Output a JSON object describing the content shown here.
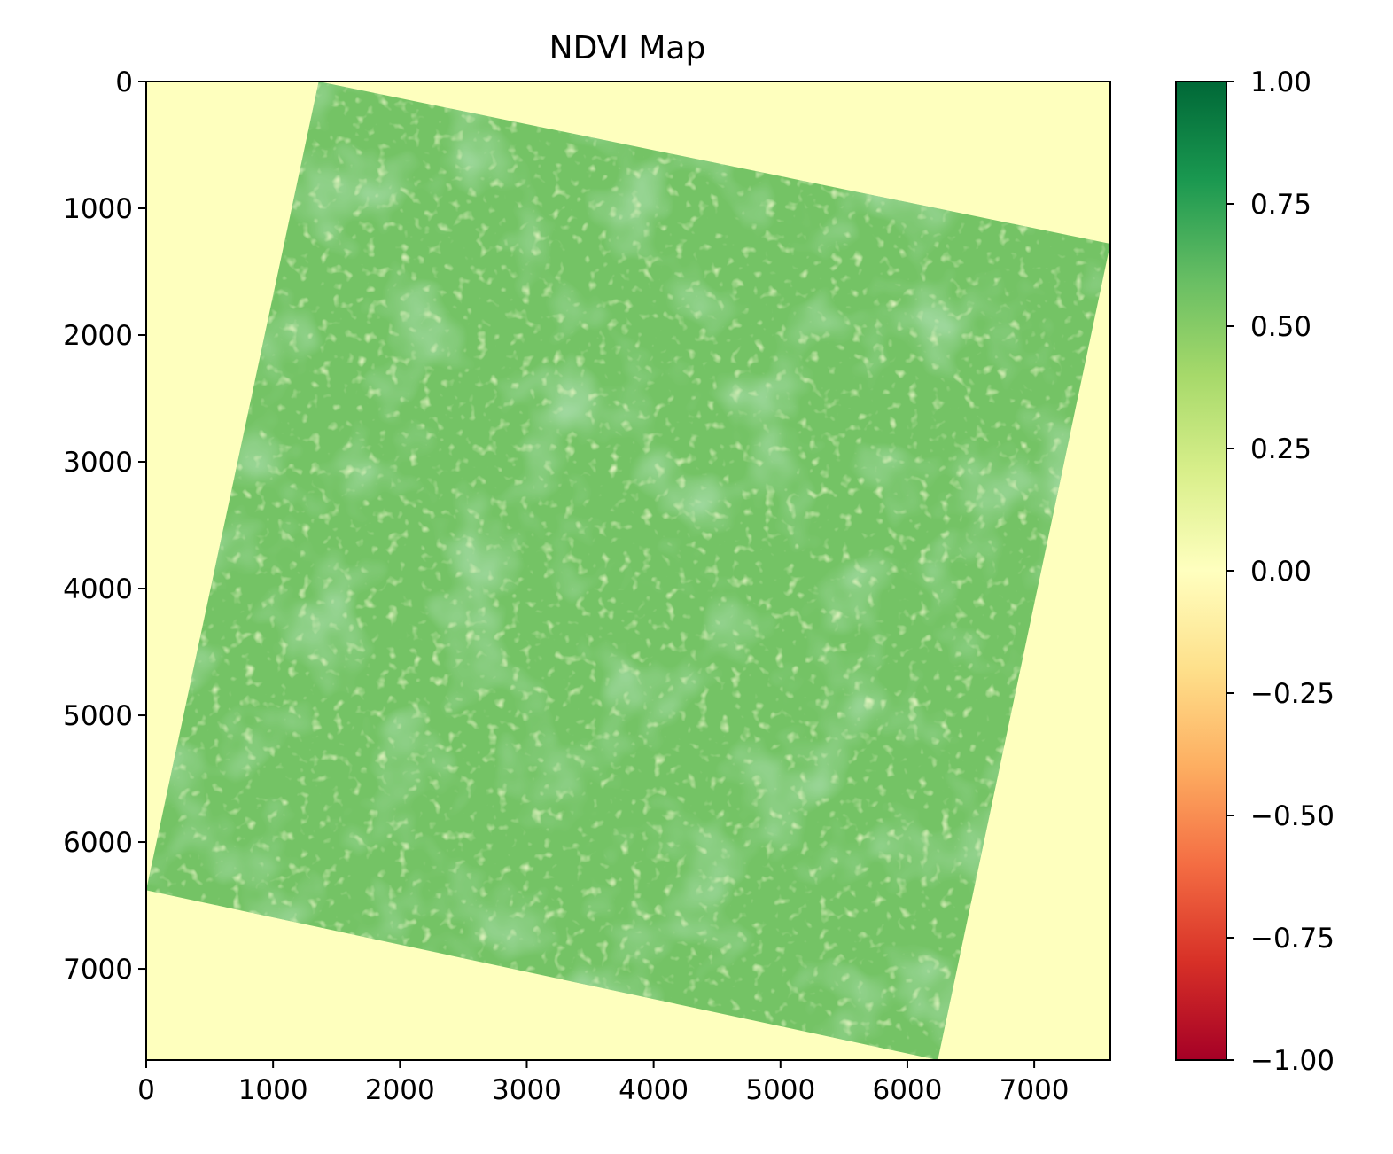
{
  "chart_data": {
    "type": "heatmap",
    "title": "NDVI Map",
    "xlabel": "",
    "ylabel": "",
    "xlim": [
      0,
      7600
    ],
    "ylim": [
      7720,
      0
    ],
    "x_ticks": [
      "0",
      "1000",
      "2000",
      "3000",
      "4000",
      "5000",
      "6000",
      "7000"
    ],
    "y_ticks": [
      "0",
      "1000",
      "2000",
      "3000",
      "4000",
      "5000",
      "6000",
      "7000"
    ],
    "colormap": "RdYlGn",
    "colorbar": {
      "range": [
        -1.0,
        1.0
      ],
      "ticks": [
        "1.00",
        "0.75",
        "0.50",
        "0.25",
        "0.00",
        "−0.25",
        "−0.50",
        "−0.75",
        "−1.00"
      ],
      "tick_values": [
        1.0,
        0.75,
        0.5,
        0.25,
        0.0,
        -0.25,
        -0.5,
        -0.75,
        -1.0
      ]
    },
    "background_value": 0.0,
    "scene": {
      "description_values": "rotated square scene, NDVI mostly 0.4–0.6",
      "corners": [
        [
          1360,
          0
        ],
        [
          7600,
          1280
        ],
        [
          6240,
          7720
        ],
        [
          0,
          6380
        ]
      ],
      "typical_value": 0.55
    },
    "colors": {
      "background": "#feffbe",
      "vegetation": "#74c365",
      "vegetation_light": "#b2de7d"
    }
  }
}
